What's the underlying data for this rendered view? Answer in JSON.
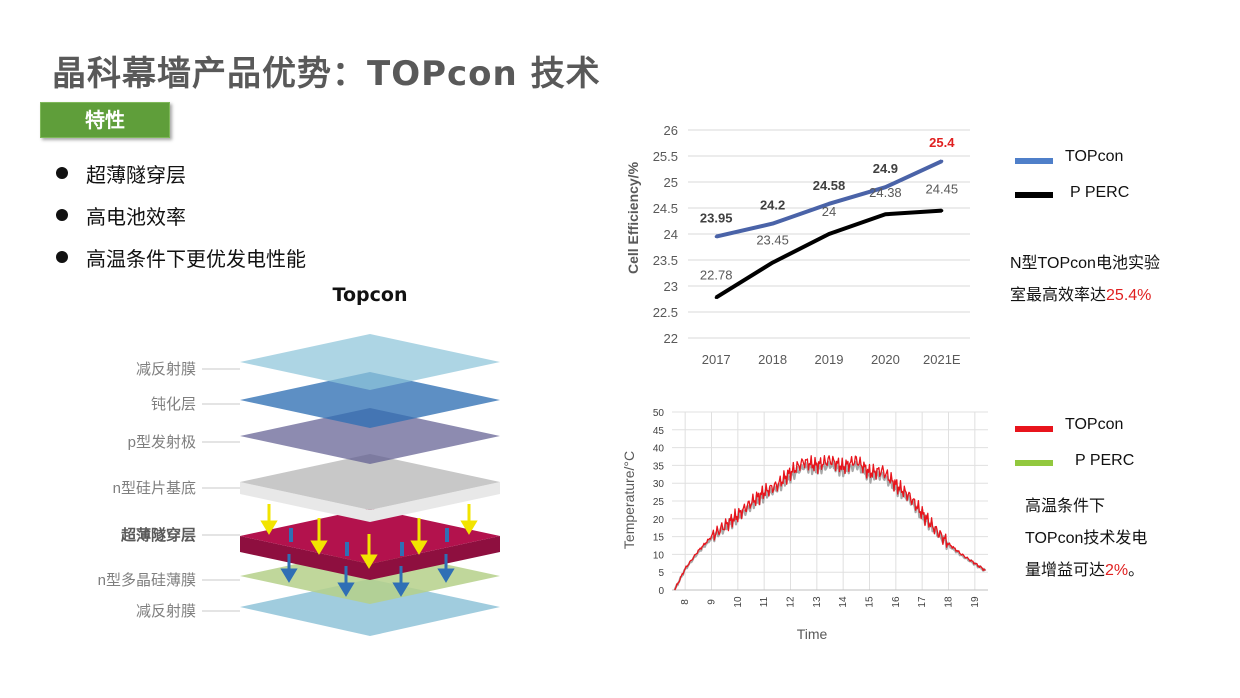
{
  "title": "晶科幕墙产品优势：TOPcon 技术",
  "badge": "特性",
  "bullets": [
    "超薄隧穿层",
    "高电池效率",
    "高温条件下更优发电性能"
  ],
  "stack": {
    "title": "Topcon",
    "layers": [
      {
        "label": "减反射膜",
        "bold": false
      },
      {
        "label": "钝化层",
        "bold": false
      },
      {
        "label": "p型发射极",
        "bold": false
      },
      {
        "label": "n型硅片基底",
        "bold": false
      },
      {
        "label": "超薄隧穿层",
        "bold": true
      },
      {
        "label": "n型多晶硅薄膜",
        "bold": false
      },
      {
        "label": "减反射膜",
        "bold": false
      }
    ]
  },
  "chart_data": [
    {
      "type": "line",
      "categories": [
        "2017",
        "2018",
        "2019",
        "2020",
        "2021E"
      ],
      "ylabel": "Cell Efficiency/%",
      "ylim": [
        22,
        26
      ],
      "yticks": [
        "22",
        "22.5",
        "23",
        "23.5",
        "24",
        "24.5",
        "25",
        "25.5",
        "26"
      ],
      "grid": true,
      "legend_position": "right",
      "series": [
        {
          "name": "TOPcon",
          "color": "#4a63a8",
          "values": [
            23.95,
            24.2,
            24.58,
            24.9,
            25.4
          ],
          "labels": [
            "23.95",
            "24.2",
            "24.58",
            "24.9",
            "25.4"
          ]
        },
        {
          "name": "P PERC",
          "color": "#000000",
          "values": [
            22.78,
            23.45,
            24,
            24.38,
            24.45
          ],
          "labels": [
            "22.78",
            "23.45",
            "24",
            "24.38",
            "24.45"
          ]
        }
      ]
    },
    {
      "type": "line",
      "xlabel": "Time",
      "ylabel": "Temperature/°C",
      "ylim": [
        0,
        50
      ],
      "xlim": [
        7.5,
        19.5
      ],
      "yticks": [
        "0",
        "5",
        "10",
        "15",
        "20",
        "25",
        "30",
        "35",
        "40",
        "45",
        "50"
      ],
      "xticks": [
        "8",
        "9",
        "10",
        "11",
        "12",
        "13",
        "14",
        "15",
        "16",
        "17",
        "18",
        "19"
      ],
      "grid": true,
      "legend_position": "right",
      "series": [
        {
          "name": "TOPcon",
          "color": "#e8141c",
          "x": [
            7.6,
            8,
            8.5,
            9,
            9.5,
            10,
            10.5,
            11,
            11.5,
            12,
            12.5,
            13,
            13.5,
            14,
            14.5,
            15,
            15.5,
            16,
            16.5,
            17,
            17.5,
            18,
            18.5,
            19,
            19.4
          ],
          "y": [
            0,
            6,
            11,
            15,
            18,
            21,
            24.5,
            27.5,
            29.5,
            33,
            36,
            35,
            36.5,
            34.5,
            36.5,
            33,
            33.5,
            29.5,
            26.5,
            21.5,
            17,
            13,
            10,
            7.5,
            5.5
          ]
        },
        {
          "name": "P PERC",
          "color": "#92c83e",
          "x": [
            7.6,
            8,
            8.5,
            9,
            9.5,
            10,
            10.5,
            11,
            11.5,
            12,
            12.5,
            13,
            13.5,
            14,
            14.5,
            15,
            15.5,
            16,
            16.5,
            17,
            17.5,
            18,
            18.5,
            19,
            19.4
          ],
          "y": [
            0,
            5.8,
            10.6,
            14.5,
            17.4,
            20.3,
            23.6,
            26.5,
            28.6,
            31.8,
            34.7,
            33.8,
            35.2,
            33.3,
            35.2,
            31.8,
            32.3,
            28.5,
            25.6,
            20.8,
            16.5,
            12.6,
            9.7,
            7.3,
            5.4
          ]
        }
      ]
    }
  ],
  "notes": {
    "chart1": {
      "line1": "N型TOPcon电池实验",
      "line2": "室最高效率达",
      "highlight": "25.4%"
    },
    "chart2": {
      "line1": "高温条件下",
      "line2": "TOPcon技术发电",
      "line3": "量增益可达",
      "highlight": "2%",
      "suffix": "。"
    }
  }
}
